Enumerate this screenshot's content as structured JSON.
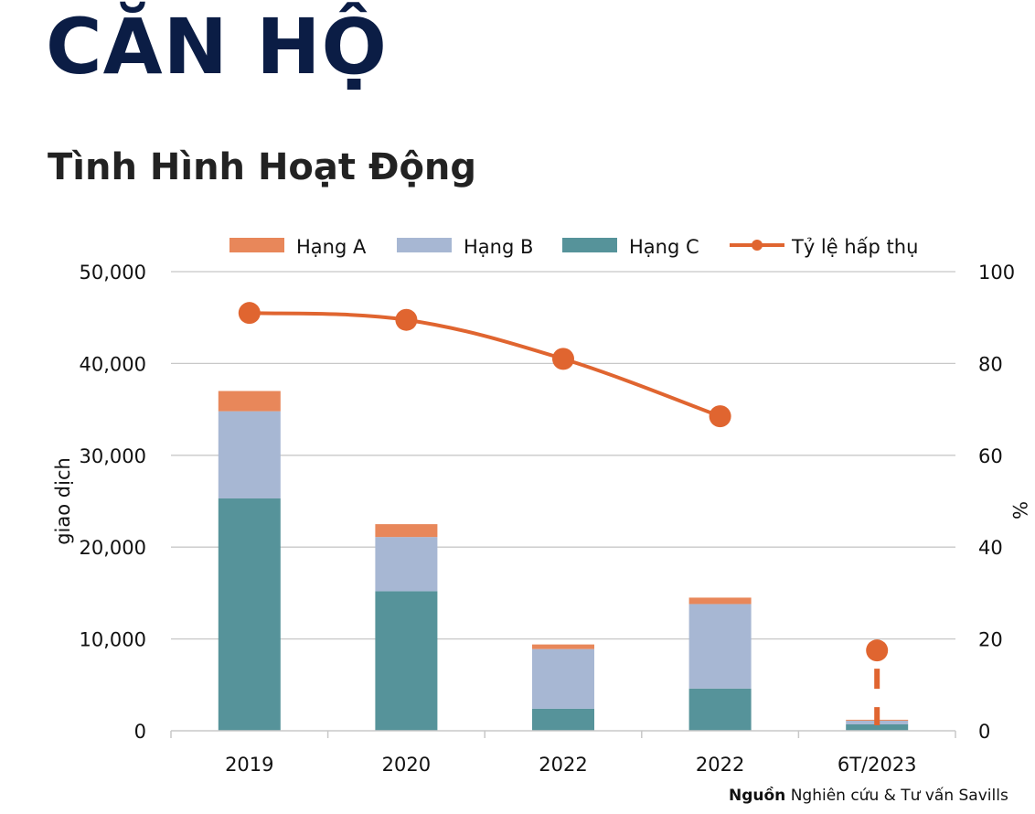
{
  "header": {
    "title": "CĂN HỘ",
    "subtitle": "Tình Hình Hoạt Động"
  },
  "source": {
    "label": "Nguồn",
    "text": "Nghiên cứu & Tư vấn Savills"
  },
  "chart_data": {
    "type": "bar",
    "stacked": true,
    "categories": [
      "2019",
      "2020",
      "2022",
      "2022",
      "6T/2023"
    ],
    "ylabel": "giao dịch",
    "y2label": "%",
    "ylim": [
      0,
      50000
    ],
    "y2lim": [
      0,
      100
    ],
    "yticks": [
      "0",
      "10,000",
      "20,000",
      "30,000",
      "40,000",
      "50,000"
    ],
    "y2ticks": [
      "0",
      "20",
      "40",
      "60",
      "80",
      "100"
    ],
    "grid": true,
    "legend": "top",
    "series": [
      {
        "name": "Hạng C",
        "values": [
          25300,
          15200,
          2400,
          4600,
          700
        ],
        "color": "#56939a"
      },
      {
        "name": "Hạng B",
        "values": [
          9500,
          5900,
          6500,
          9200,
          400
        ],
        "color": "#a7b7d3"
      },
      {
        "name": "Hạng A",
        "values": [
          2200,
          1400,
          500,
          700,
          100
        ],
        "color": "#e8875a"
      }
    ],
    "line": {
      "name": "Tỷ lệ hấp thụ",
      "axis": "right",
      "values": [
        91,
        89.5,
        81,
        68.5,
        17.5
      ],
      "color": "#e06530",
      "last_segment": "dashed"
    },
    "legend_order": [
      "Hạng A",
      "Hạng B",
      "Hạng C",
      "Tỷ lệ hấp thụ"
    ]
  }
}
